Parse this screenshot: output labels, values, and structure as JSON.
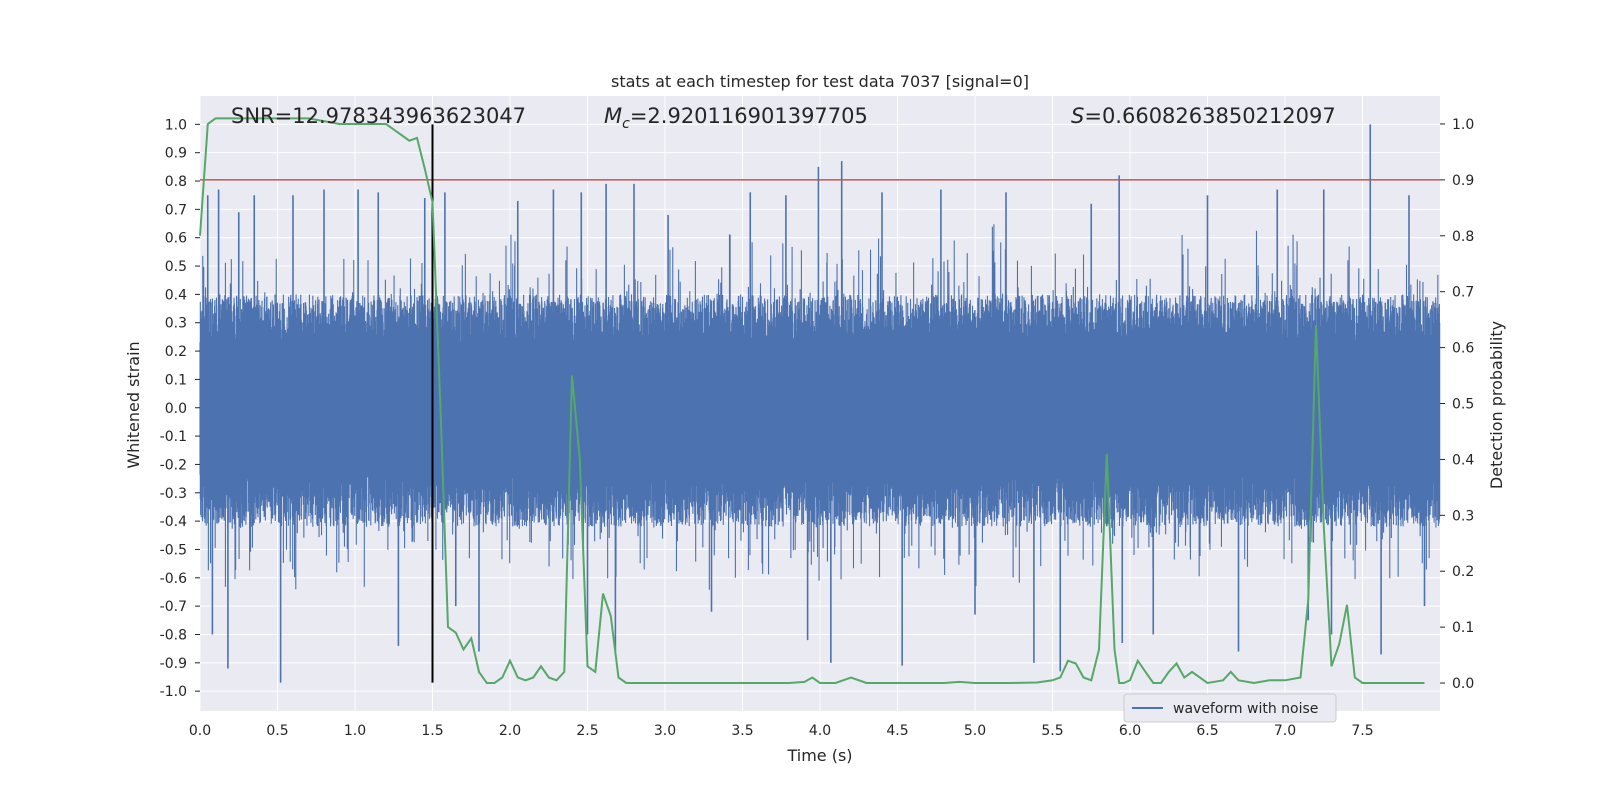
{
  "chart_data": {
    "type": "line",
    "title": "stats at each timestep for test data 7037 [signal=0]",
    "xlabel": "Time (s)",
    "ylabel": "Whitened strain",
    "y2label": "Detection probability",
    "xlim": [
      0,
      8.0
    ],
    "ylim": [
      -1.07,
      1.1
    ],
    "y2lim": [
      -0.05,
      1.05
    ],
    "x_ticks": [
      0.0,
      0.5,
      1.0,
      1.5,
      2.0,
      2.5,
      3.0,
      3.5,
      4.0,
      4.5,
      5.0,
      5.5,
      6.0,
      6.5,
      7.0,
      7.5
    ],
    "x_tick_labels": [
      "0.0",
      "0.5",
      "1.0",
      "1.5",
      "2.0",
      "2.5",
      "3.0",
      "3.5",
      "4.0",
      "4.5",
      "5.0",
      "5.5",
      "6.0",
      "6.5",
      "7.0",
      "7.5"
    ],
    "y_ticks": [
      -1.0,
      -0.9,
      -0.8,
      -0.7,
      -0.6,
      -0.5,
      -0.4,
      -0.3,
      -0.2,
      -0.1,
      0.0,
      0.1,
      0.2,
      0.3,
      0.4,
      0.5,
      0.6,
      0.7,
      0.8,
      0.9,
      1.0
    ],
    "y_tick_labels": [
      "-1.0",
      "-0.9",
      "-0.8",
      "-0.7",
      "-0.6",
      "-0.5",
      "-0.4",
      "-0.3",
      "-0.2",
      "-0.1",
      "0.0",
      "0.1",
      "0.2",
      "0.3",
      "0.4",
      "0.5",
      "0.6",
      "0.7",
      "0.8",
      "0.9",
      "1.0"
    ],
    "y2_ticks": [
      0.0,
      0.1,
      0.2,
      0.3,
      0.4,
      0.5,
      0.6,
      0.7,
      0.8,
      0.9,
      1.0
    ],
    "y2_tick_labels": [
      "0.0",
      "0.1",
      "0.2",
      "0.3",
      "0.4",
      "0.5",
      "0.6",
      "0.7",
      "0.8",
      "0.9",
      "1.0"
    ],
    "annotations": {
      "snr": "SNR=12.978343963623047",
      "mc_symbol": "M",
      "mc_subscript": "c",
      "mc_value": "=2.920116901397705",
      "s_symbol": "S",
      "s_value": "=0.6608263850212097"
    },
    "threshold": {
      "y2": 0.9,
      "color": "#c44e52"
    },
    "vline": {
      "x": 1.5,
      "ymin": -0.97,
      "ymax": 1.0,
      "color": "#000000"
    },
    "series": [
      {
        "name": "waveform with noise",
        "axis": "left",
        "color": "#4c72b0",
        "band": {
          "x_start": 0.0,
          "x_end": 8.0,
          "sample_count": 4000,
          "typical_high": 0.4,
          "typical_low": -0.42
        },
        "spikes": [
          {
            "x": 0.05,
            "y": 0.75
          },
          {
            "x": 0.08,
            "y": -0.8
          },
          {
            "x": 0.12,
            "y": 0.77
          },
          {
            "x": 0.18,
            "y": -0.92
          },
          {
            "x": 0.25,
            "y": 0.69
          },
          {
            "x": 0.35,
            "y": 0.75
          },
          {
            "x": 0.52,
            "y": -0.97
          },
          {
            "x": 0.6,
            "y": 0.75
          },
          {
            "x": 0.8,
            "y": 0.77
          },
          {
            "x": 1.02,
            "y": 0.77
          },
          {
            "x": 1.15,
            "y": 0.76
          },
          {
            "x": 1.28,
            "y": -0.84
          },
          {
            "x": 1.45,
            "y": 0.74
          },
          {
            "x": 1.58,
            "y": 0.76
          },
          {
            "x": 1.65,
            "y": -0.7
          },
          {
            "x": 1.8,
            "y": -0.86
          },
          {
            "x": 2.05,
            "y": 0.73
          },
          {
            "x": 2.28,
            "y": 0.77
          },
          {
            "x": 2.46,
            "y": 0.76
          },
          {
            "x": 2.5,
            "y": -0.8
          },
          {
            "x": 2.62,
            "y": 0.79
          },
          {
            "x": 2.68,
            "y": -0.86
          },
          {
            "x": 2.8,
            "y": 0.79
          },
          {
            "x": 3.02,
            "y": 0.68
          },
          {
            "x": 3.3,
            "y": -0.72
          },
          {
            "x": 3.55,
            "y": 0.76
          },
          {
            "x": 3.78,
            "y": 0.75
          },
          {
            "x": 3.92,
            "y": -0.82
          },
          {
            "x": 3.99,
            "y": 0.85
          },
          {
            "x": 4.07,
            "y": -0.9
          },
          {
            "x": 4.14,
            "y": 0.87
          },
          {
            "x": 4.4,
            "y": 0.76
          },
          {
            "x": 4.53,
            "y": -0.91
          },
          {
            "x": 4.78,
            "y": 0.77
          },
          {
            "x": 5.0,
            "y": -0.73
          },
          {
            "x": 5.2,
            "y": 0.76
          },
          {
            "x": 5.38,
            "y": -0.9
          },
          {
            "x": 5.55,
            "y": -0.93
          },
          {
            "x": 5.75,
            "y": 0.72
          },
          {
            "x": 5.93,
            "y": 0.82
          },
          {
            "x": 5.95,
            "y": -0.83
          },
          {
            "x": 6.15,
            "y": -0.8
          },
          {
            "x": 6.5,
            "y": 0.75
          },
          {
            "x": 6.7,
            "y": -0.86
          },
          {
            "x": 6.95,
            "y": 0.77
          },
          {
            "x": 7.15,
            "y": -0.75
          },
          {
            "x": 7.25,
            "y": 0.77
          },
          {
            "x": 7.3,
            "y": -0.8
          },
          {
            "x": 7.55,
            "y": 1.0
          },
          {
            "x": 7.62,
            "y": -0.87
          },
          {
            "x": 7.8,
            "y": 0.75
          },
          {
            "x": 7.9,
            "y": -0.7
          }
        ]
      },
      {
        "name": "",
        "axis": "right",
        "color": "#55a868",
        "x": [
          0.0,
          0.05,
          0.1,
          0.2,
          0.4,
          0.7,
          0.9,
          1.0,
          1.1,
          1.2,
          1.3,
          1.35,
          1.4,
          1.45,
          1.5,
          1.55,
          1.6,
          1.65,
          1.7,
          1.75,
          1.8,
          1.85,
          1.9,
          1.95,
          2.0,
          2.05,
          2.1,
          2.15,
          2.2,
          2.25,
          2.3,
          2.35,
          2.4,
          2.45,
          2.5,
          2.55,
          2.6,
          2.65,
          2.7,
          2.75,
          2.8,
          2.85,
          2.9,
          2.95,
          3.0,
          3.1,
          3.3,
          3.5,
          3.8,
          3.9,
          3.95,
          4.0,
          4.1,
          4.2,
          4.3,
          4.4,
          4.6,
          4.8,
          4.9,
          5.0,
          5.2,
          5.4,
          5.5,
          5.55,
          5.6,
          5.65,
          5.7,
          5.75,
          5.8,
          5.85,
          5.9,
          5.93,
          5.96,
          6.0,
          6.05,
          6.1,
          6.15,
          6.2,
          6.25,
          6.3,
          6.35,
          6.4,
          6.5,
          6.6,
          6.65,
          6.7,
          6.8,
          6.9,
          7.0,
          7.1,
          7.15,
          7.2,
          7.25,
          7.3,
          7.35,
          7.4,
          7.45,
          7.5,
          7.55,
          7.6,
          7.7,
          7.8,
          7.9
        ],
        "y": [
          0.8,
          1.0,
          1.01,
          1.01,
          1.01,
          1.01,
          1.0,
          1.0,
          1.0,
          1.0,
          0.98,
          0.97,
          0.975,
          0.92,
          0.86,
          0.5,
          0.1,
          0.09,
          0.06,
          0.08,
          0.02,
          0.0,
          0.0,
          0.01,
          0.04,
          0.01,
          0.005,
          0.01,
          0.03,
          0.01,
          0.005,
          0.02,
          0.55,
          0.4,
          0.03,
          0.02,
          0.16,
          0.12,
          0.01,
          0.0,
          0.0,
          0.0,
          0.0,
          0.0,
          0.0,
          0.0,
          0.0,
          0.0,
          0.0,
          0.002,
          0.01,
          0.0,
          0.0,
          0.01,
          0.0,
          0.0,
          0.0,
          0.0,
          0.002,
          0.0,
          0.0,
          0.001,
          0.005,
          0.01,
          0.04,
          0.035,
          0.01,
          0.005,
          0.06,
          0.41,
          0.06,
          0.0,
          0.0,
          0.005,
          0.04,
          0.02,
          0.0,
          0.0,
          0.02,
          0.035,
          0.01,
          0.02,
          0.0,
          0.005,
          0.02,
          0.005,
          0.0,
          0.005,
          0.005,
          0.01,
          0.15,
          0.64,
          0.28,
          0.03,
          0.07,
          0.14,
          0.01,
          0.0,
          0.0,
          0.0,
          0.0,
          0.0,
          0.0
        ]
      }
    ],
    "legend": {
      "position": "lower-right",
      "entries": [
        "waveform with noise"
      ]
    },
    "grid": true
  },
  "colors": {
    "plot_background": "#eaeaf2",
    "grid": "#ffffff",
    "waveform": "#4c72b0",
    "probability": "#55a868",
    "threshold": "#c44e52",
    "marker": "#000000"
  }
}
